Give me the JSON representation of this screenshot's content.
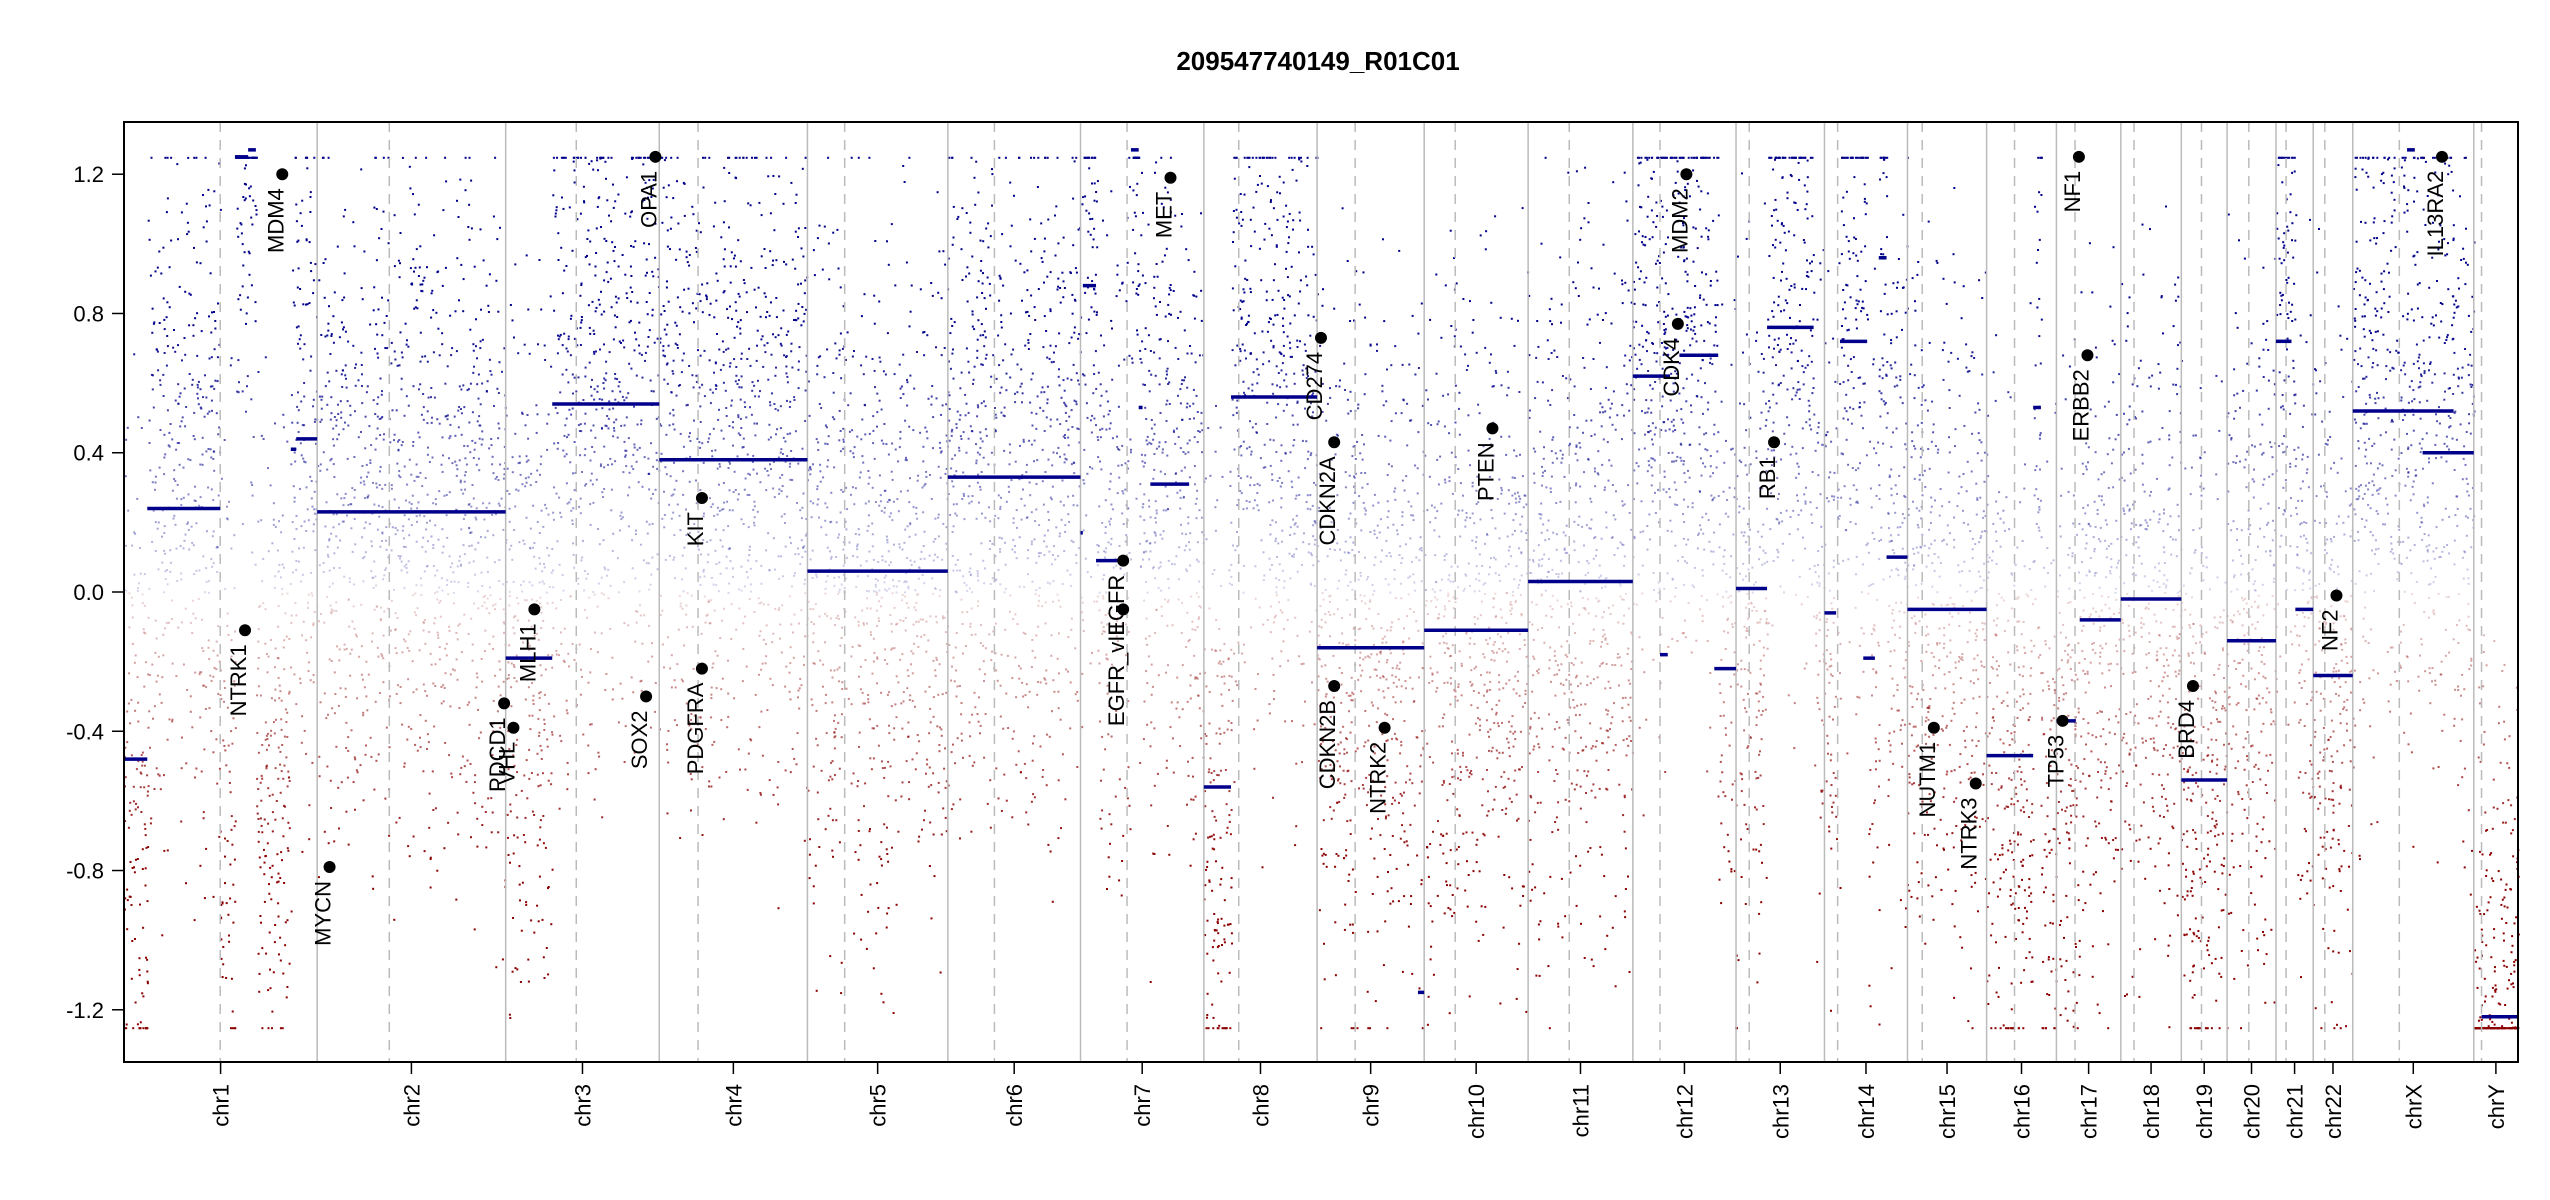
{
  "chart_data": {
    "type": "scatter",
    "title": "209547740149_R01C01",
    "xlabel": "",
    "ylabel": "",
    "ylim": [
      -1.35,
      1.35
    ],
    "y_ticks": [
      1.2,
      0.8,
      0.4,
      0.0,
      -0.4,
      -0.8,
      -1.2
    ],
    "y_tick_labels": [
      "1.2",
      "0.8",
      "0.4",
      "0.0",
      "-0.4",
      "-0.8",
      "-1.2"
    ],
    "colors": {
      "gain": "#00008b",
      "loss": "#8b0000",
      "segment": "#00008b",
      "separator": "#bbbbbb",
      "marker": "#000000"
    },
    "chromosomes": [
      {
        "name": "chr1",
        "size": 249,
        "centromere": 124
      },
      {
        "name": "chr2",
        "size": 243,
        "centromere": 93
      },
      {
        "name": "chr3",
        "size": 198,
        "centromere": 91
      },
      {
        "name": "chr4",
        "size": 191,
        "centromere": 50
      },
      {
        "name": "chr5",
        "size": 181,
        "centromere": 48
      },
      {
        "name": "chr6",
        "size": 171,
        "centromere": 60
      },
      {
        "name": "chr7",
        "size": 159,
        "centromere": 60
      },
      {
        "name": "chr8",
        "size": 146,
        "centromere": 45
      },
      {
        "name": "chr9",
        "size": 138,
        "centromere": 49
      },
      {
        "name": "chr10",
        "size": 134,
        "centromere": 40
      },
      {
        "name": "chr11",
        "size": 135,
        "centromere": 53
      },
      {
        "name": "chr12",
        "size": 133,
        "centromere": 35
      },
      {
        "name": "chr13",
        "size": 114,
        "centromere": 17
      },
      {
        "name": "chr14",
        "size": 107,
        "centromere": 17
      },
      {
        "name": "chr15",
        "size": 102,
        "centromere": 19
      },
      {
        "name": "chr16",
        "size": 90,
        "centromere": 36
      },
      {
        "name": "chr17",
        "size": 83,
        "centromere": 24
      },
      {
        "name": "chr18",
        "size": 78,
        "centromere": 17
      },
      {
        "name": "chr19",
        "size": 59,
        "centromere": 26
      },
      {
        "name": "chr20",
        "size": 63,
        "centromere": 28
      },
      {
        "name": "chr21",
        "size": 48,
        "centromere": 13
      },
      {
        "name": "chr22",
        "size": 51,
        "centromere": 15
      },
      {
        "name": "chrX",
        "size": 156,
        "centromere": 60
      },
      {
        "name": "chrY",
        "size": 57,
        "centromere": 10
      }
    ],
    "segments": [
      {
        "chr": "chr1",
        "start": 0,
        "end": 30,
        "value": -0.48
      },
      {
        "chr": "chr1",
        "start": 30,
        "end": 124,
        "value": 0.24
      },
      {
        "chr": "chr1",
        "start": 143,
        "end": 160,
        "value": 1.25
      },
      {
        "chr": "chr1",
        "start": 160,
        "end": 170,
        "value": 1.27
      },
      {
        "chr": "chr1",
        "start": 215,
        "end": 222,
        "value": 0.41
      },
      {
        "chr": "chr1",
        "start": 222,
        "end": 249,
        "value": 0.44
      },
      {
        "chr": "chr2",
        "start": 0,
        "end": 243,
        "value": 0.23
      },
      {
        "chr": "chr3",
        "start": 0,
        "end": 30,
        "value": -0.19
      },
      {
        "chr": "chr3",
        "start": 30,
        "end": 60,
        "value": -0.19
      },
      {
        "chr": "chr3",
        "start": 60,
        "end": 198,
        "value": 0.54
      },
      {
        "chr": "chr4",
        "start": 0,
        "end": 191,
        "value": 0.38
      },
      {
        "chr": "chr5",
        "start": 0,
        "end": 181,
        "value": 0.06
      },
      {
        "chr": "chr6",
        "start": 0,
        "end": 171,
        "value": 0.33
      },
      {
        "chr": "chr7",
        "start": 0,
        "end": 3,
        "value": 0.17
      },
      {
        "chr": "chr7",
        "start": 3,
        "end": 20,
        "value": 0.88
      },
      {
        "chr": "chr7",
        "start": 20,
        "end": 55,
        "value": 0.09
      },
      {
        "chr": "chr7",
        "start": 65,
        "end": 75,
        "value": 1.27
      },
      {
        "chr": "chr7",
        "start": 75,
        "end": 80,
        "value": 0.53
      },
      {
        "chr": "chr7",
        "start": 90,
        "end": 140,
        "value": 0.31
      },
      {
        "chr": "chr8",
        "start": 0,
        "end": 35,
        "value": -0.56
      },
      {
        "chr": "chr8",
        "start": 35,
        "end": 146,
        "value": 0.56
      },
      {
        "chr": "chr9",
        "start": 0,
        "end": 138,
        "value": -0.16
      },
      {
        "chr": "chr9",
        "start": 130,
        "end": 138,
        "value": -1.15
      },
      {
        "chr": "chr10",
        "start": 0,
        "end": 134,
        "value": -0.11
      },
      {
        "chr": "chr11",
        "start": 0,
        "end": 135,
        "value": 0.03
      },
      {
        "chr": "chr12",
        "start": 0,
        "end": 48,
        "value": 0.62
      },
      {
        "chr": "chr12",
        "start": 35,
        "end": 45,
        "value": -0.18
      },
      {
        "chr": "chr12",
        "start": 60,
        "end": 110,
        "value": 0.68
      },
      {
        "chr": "chr12",
        "start": 105,
        "end": 133,
        "value": -0.22
      },
      {
        "chr": "chr13",
        "start": 0,
        "end": 40,
        "value": 0.01
      },
      {
        "chr": "chr13",
        "start": 40,
        "end": 100,
        "value": 0.76
      },
      {
        "chr": "chr14",
        "start": 0,
        "end": 15,
        "value": -0.06
      },
      {
        "chr": "chr14",
        "start": 20,
        "end": 55,
        "value": 0.72
      },
      {
        "chr": "chr14",
        "start": 50,
        "end": 65,
        "value": -0.19
      },
      {
        "chr": "chr14",
        "start": 70,
        "end": 80,
        "value": 0.96
      },
      {
        "chr": "chr14",
        "start": 80,
        "end": 107,
        "value": 0.1
      },
      {
        "chr": "chr15",
        "start": 0,
        "end": 102,
        "value": -0.05
      },
      {
        "chr": "chr16",
        "start": 0,
        "end": 60,
        "value": -0.47
      },
      {
        "chr": "chr16",
        "start": 60,
        "end": 70,
        "value": 0.53
      },
      {
        "chr": "chr17",
        "start": 0,
        "end": 25,
        "value": -0.37
      },
      {
        "chr": "chr17",
        "start": 30,
        "end": 83,
        "value": -0.08
      },
      {
        "chr": "chr18",
        "start": 0,
        "end": 78,
        "value": -0.02
      },
      {
        "chr": "chr19",
        "start": 0,
        "end": 59,
        "value": -0.54
      },
      {
        "chr": "chr20",
        "start": 0,
        "end": 63,
        "value": -0.14
      },
      {
        "chr": "chr21",
        "start": 0,
        "end": 20,
        "value": 0.72
      },
      {
        "chr": "chr21",
        "start": 25,
        "end": 48,
        "value": -0.05
      },
      {
        "chr": "chr22",
        "start": 0,
        "end": 51,
        "value": -0.24
      },
      {
        "chr": "chrX",
        "start": 0,
        "end": 130,
        "value": 0.52
      },
      {
        "chr": "chrX",
        "start": 70,
        "end": 80,
        "value": 1.27
      },
      {
        "chr": "chrX",
        "start": 90,
        "end": 156,
        "value": 0.4
      },
      {
        "chr": "chrY",
        "start": 10,
        "end": 57,
        "value": -1.22
      }
    ],
    "genes": [
      {
        "name": "NTRK1",
        "chr": "chr1",
        "pos": 156,
        "value": -0.11
      },
      {
        "name": "MDM4",
        "chr": "chr1",
        "pos": 204,
        "value": 1.2
      },
      {
        "name": "MYCN",
        "chr": "chr2",
        "pos": 16,
        "value": -0.79
      },
      {
        "name": "PDCD1",
        "chr": "chr2",
        "pos": 241,
        "value": -0.32
      },
      {
        "name": "VHL",
        "chr": "chr3",
        "pos": 10,
        "value": -0.39
      },
      {
        "name": "MLH1",
        "chr": "chr3",
        "pos": 37,
        "value": -0.05
      },
      {
        "name": "SOX2",
        "chr": "chr3",
        "pos": 181,
        "value": -0.3
      },
      {
        "name": "OPA1",
        "chr": "chr3",
        "pos": 193,
        "value": 1.25
      },
      {
        "name": "KIT",
        "chr": "chr4",
        "pos": 55,
        "value": 0.27
      },
      {
        "name": "PDGFRA",
        "chr": "chr4",
        "pos": 55,
        "value": -0.22
      },
      {
        "name": "EGFR",
        "chr": "chr7",
        "pos": 55,
        "value": 0.09
      },
      {
        "name": "EGFR_vIII",
        "chr": "chr7",
        "pos": 55,
        "value": -0.05
      },
      {
        "name": "MET",
        "chr": "chr7",
        "pos": 116,
        "value": 1.19
      },
      {
        "name": "CD274",
        "chr": "chr9",
        "pos": 5,
        "value": 0.73
      },
      {
        "name": "CDKN2A",
        "chr": "chr9",
        "pos": 22,
        "value": 0.43
      },
      {
        "name": "CDKN2B",
        "chr": "chr9",
        "pos": 22,
        "value": -0.27
      },
      {
        "name": "NTRK2",
        "chr": "chr9",
        "pos": 87,
        "value": -0.39
      },
      {
        "name": "PTEN",
        "chr": "chr10",
        "pos": 88,
        "value": 0.47
      },
      {
        "name": "CDK4",
        "chr": "chr12",
        "pos": 58,
        "value": 0.77
      },
      {
        "name": "MDM2",
        "chr": "chr12",
        "pos": 69,
        "value": 1.2
      },
      {
        "name": "RB1",
        "chr": "chr13",
        "pos": 49,
        "value": 0.43
      },
      {
        "name": "NUTM1",
        "chr": "chr15",
        "pos": 34,
        "value": -0.39
      },
      {
        "name": "NTRK3",
        "chr": "chr15",
        "pos": 88,
        "value": -0.55
      },
      {
        "name": "TP53",
        "chr": "chr17",
        "pos": 8,
        "value": -0.37
      },
      {
        "name": "NF1",
        "chr": "chr17",
        "pos": 29,
        "value": 1.25
      },
      {
        "name": "ERBB2",
        "chr": "chr17",
        "pos": 40,
        "value": 0.68
      },
      {
        "name": "BRD4",
        "chr": "chr19",
        "pos": 15,
        "value": -0.27
      },
      {
        "name": "NF2",
        "chr": "chr22",
        "pos": 30,
        "value": -0.01
      },
      {
        "name": "IL13RA2",
        "chr": "chrX",
        "pos": 115,
        "value": 1.25
      }
    ]
  }
}
